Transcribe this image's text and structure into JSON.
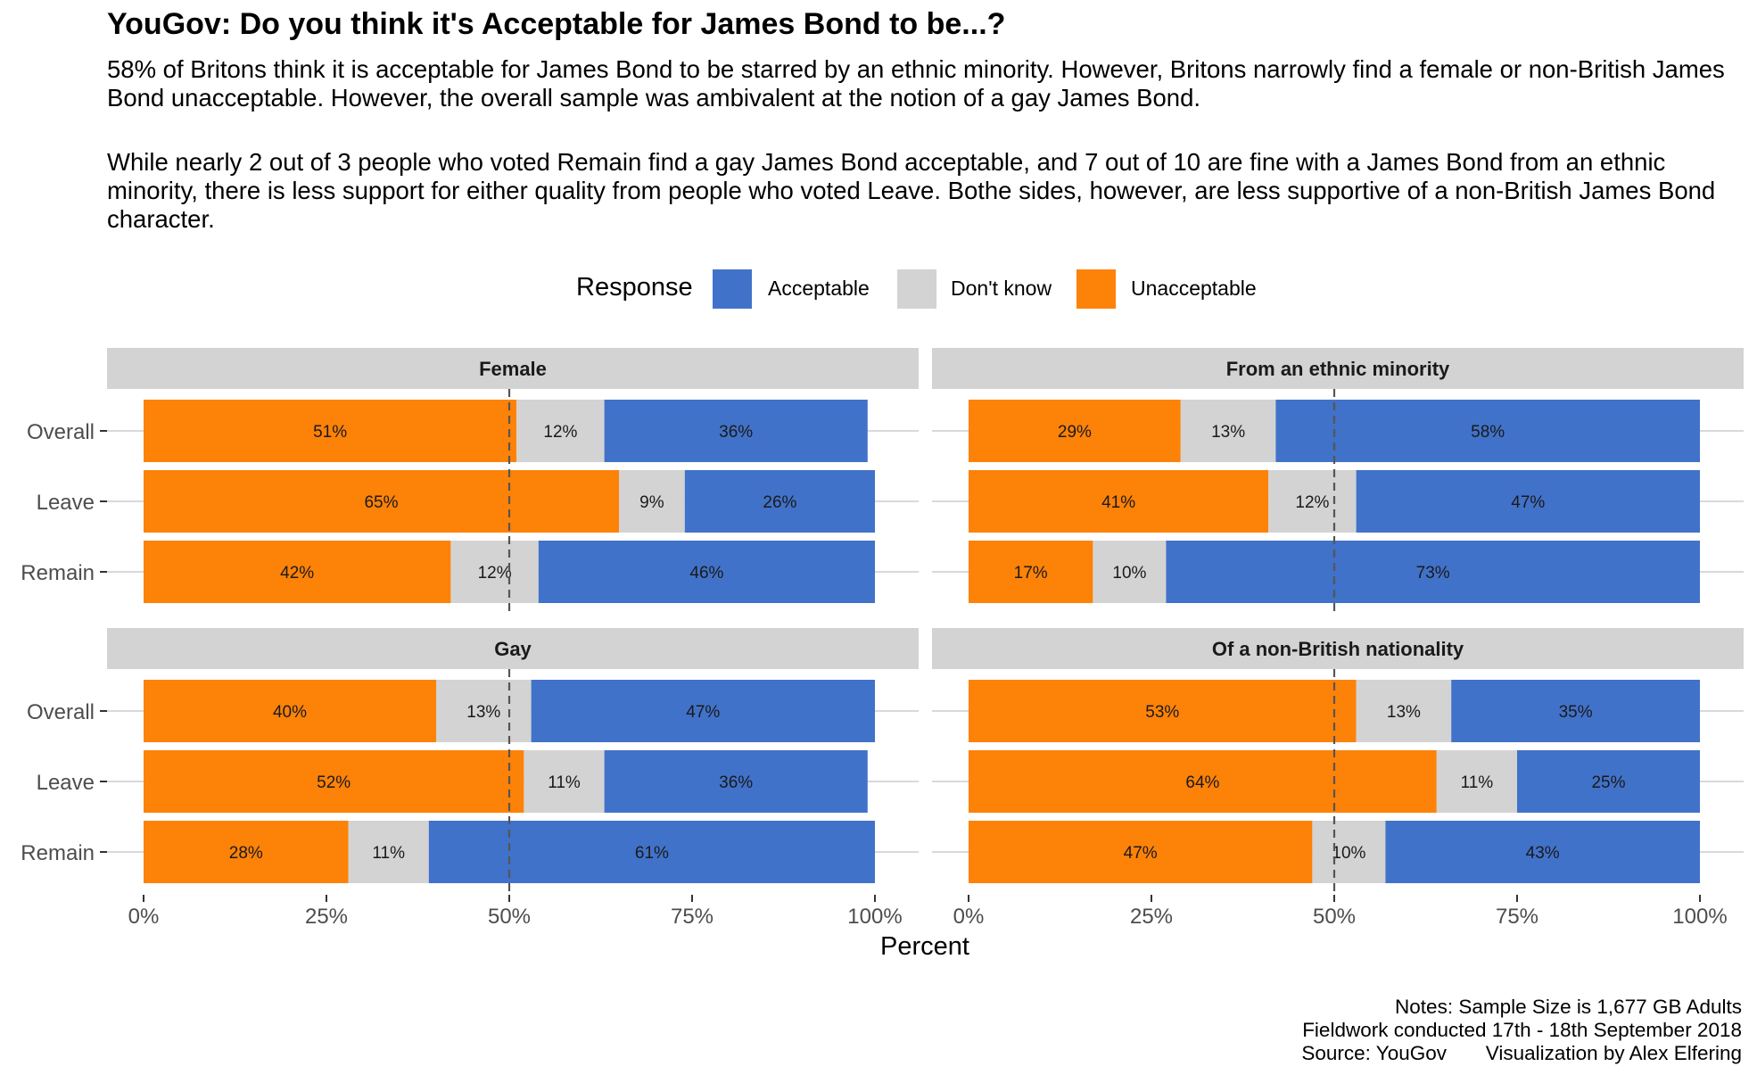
{
  "title": "YouGov: Do you think it's Acceptable for James Bond to be...?",
  "subtitle": [
    "58% of Britons think it is acceptable for James Bond to be starred by an ethnic minority. However, Britons narrowly find a female or non-British James Bond unacceptable. However, the overall sample was ambivalent at the notion of a gay James Bond.",
    "While nearly 2 out of 3 people who voted Remain find a gay James Bond acceptable, and 7 out of 10 are fine with a James Bond from an ethnic minority, there is less support for either quality from people who voted Leave. Bothe sides, however, are less supportive of a non-British James Bond character."
  ],
  "legend": {
    "title": "Response",
    "items": [
      {
        "label": "Acceptable",
        "color": "#4172c9"
      },
      {
        "label": "Don't know",
        "color": "#d3d3d3"
      },
      {
        "label": "Unacceptable",
        "color": "#fd8208"
      }
    ]
  },
  "notes": [
    "Notes: Sample Size is 1,677 GB Adults",
    "Fieldwork conducted 17th - 18th September 2018",
    "Source: YouGov       Visualization by Alex Elfering"
  ],
  "chart_data": {
    "type": "bar",
    "orientation": "horizontal",
    "stacked": true,
    "xlabel": "Percent",
    "ylabel": "",
    "xlim": [
      0,
      100
    ],
    "x_ticks": [
      "0%",
      "25%",
      "50%",
      "75%",
      "100%"
    ],
    "reference_line": 50,
    "categories": [
      "Overall",
      "Leave",
      "Remain"
    ],
    "series_colors": {
      "Unacceptable": "#fd8208",
      "Don't know": "#d3d3d3",
      "Acceptable": "#4172c9"
    },
    "panels": [
      {
        "title": "Female",
        "series": [
          {
            "name": "Unacceptable",
            "values": [
              51,
              65,
              42
            ]
          },
          {
            "name": "Don't know",
            "values": [
              12,
              9,
              12
            ]
          },
          {
            "name": "Acceptable",
            "values": [
              36,
              26,
              46
            ]
          }
        ]
      },
      {
        "title": "From an ethnic minority",
        "series": [
          {
            "name": "Unacceptable",
            "values": [
              29,
              41,
              17
            ]
          },
          {
            "name": "Don't know",
            "values": [
              13,
              12,
              10
            ]
          },
          {
            "name": "Acceptable",
            "values": [
              58,
              47,
              73
            ]
          }
        ]
      },
      {
        "title": "Gay",
        "series": [
          {
            "name": "Unacceptable",
            "values": [
              40,
              52,
              28
            ]
          },
          {
            "name": "Don't know",
            "values": [
              13,
              11,
              11
            ]
          },
          {
            "name": "Acceptable",
            "values": [
              47,
              36,
              61
            ]
          }
        ]
      },
      {
        "title": "Of a non-British nationality",
        "series": [
          {
            "name": "Unacceptable",
            "values": [
              53,
              64,
              47
            ]
          },
          {
            "name": "Don't know",
            "values": [
              13,
              11,
              10
            ]
          },
          {
            "name": "Acceptable",
            "values": [
              35,
              25,
              43
            ]
          }
        ]
      }
    ]
  }
}
